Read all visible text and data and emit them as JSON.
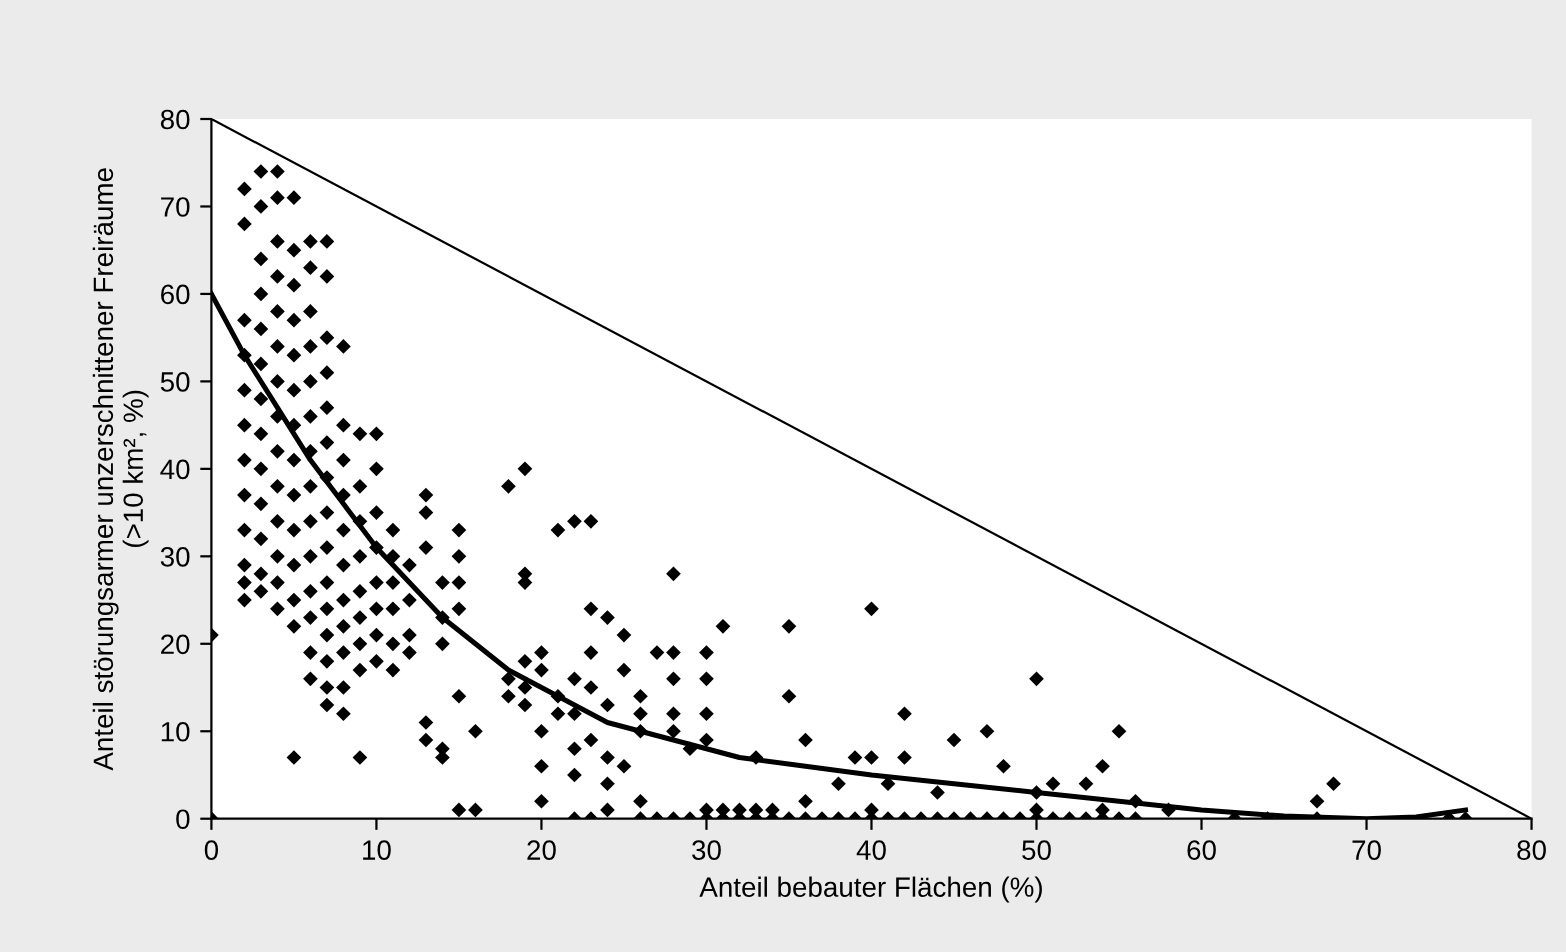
{
  "chart_data": {
    "type": "scatter",
    "xlabel": "Anteil bebauter Flächen (%)",
    "ylabel": "Anteil störungsarmer unzerschnittener Freiräume\n(>10 km², %)",
    "xlim": [
      0,
      80
    ],
    "ylim": [
      0,
      80
    ],
    "xticks": [
      0,
      10,
      20,
      30,
      40,
      50,
      60,
      70,
      80
    ],
    "yticks": [
      0,
      10,
      20,
      30,
      40,
      50,
      60,
      70,
      80
    ],
    "grid": false,
    "legend": false,
    "series": [
      {
        "marker": "diamond",
        "color": "#000000",
        "x": [
          0,
          0,
          2,
          2,
          2,
          2,
          2,
          2,
          2,
          2,
          2,
          2,
          2,
          2,
          3,
          3,
          3,
          3,
          3,
          3,
          3,
          3,
          3,
          3,
          3,
          3,
          3,
          4,
          4,
          4,
          4,
          4,
          4,
          4,
          4,
          4,
          4,
          4,
          4,
          4,
          4,
          5,
          5,
          5,
          5,
          5,
          5,
          5,
          5,
          5,
          5,
          5,
          5,
          5,
          5,
          6,
          6,
          6,
          6,
          6,
          6,
          6,
          6,
          6,
          6,
          6,
          6,
          6,
          6,
          7,
          7,
          7,
          7,
          7,
          7,
          7,
          7,
          7,
          7,
          7,
          7,
          7,
          7,
          7,
          8,
          8,
          8,
          8,
          8,
          8,
          8,
          8,
          8,
          8,
          8,
          9,
          9,
          9,
          9,
          9,
          9,
          9,
          9,
          9,
          10,
          10,
          10,
          10,
          10,
          10,
          10,
          10,
          11,
          11,
          11,
          11,
          11,
          11,
          12,
          12,
          12,
          12,
          13,
          13,
          13,
          13,
          13,
          14,
          14,
          14,
          14,
          14,
          15,
          15,
          15,
          15,
          15,
          15,
          16,
          16,
          18,
          18,
          18,
          19,
          19,
          19,
          19,
          19,
          19,
          20,
          20,
          20,
          20,
          20,
          21,
          21,
          21,
          22,
          22,
          22,
          22,
          22,
          22,
          23,
          23,
          23,
          23,
          23,
          23,
          24,
          24,
          24,
          24,
          24,
          25,
          25,
          25,
          26,
          26,
          26,
          26,
          26,
          27,
          27,
          28,
          28,
          28,
          28,
          28,
          28,
          29,
          29,
          30,
          30,
          30,
          30,
          30,
          30,
          31,
          31,
          31,
          32,
          32,
          33,
          33,
          33,
          34,
          34,
          35,
          35,
          35,
          36,
          36,
          36,
          37,
          38,
          38,
          39,
          39,
          40,
          40,
          40,
          40,
          41,
          41,
          42,
          42,
          42,
          43,
          44,
          44,
          45,
          45,
          46,
          47,
          47,
          48,
          48,
          49,
          50,
          50,
          50,
          50,
          51,
          51,
          52,
          53,
          53,
          54,
          54,
          54,
          55,
          55,
          56,
          56,
          58,
          62,
          64,
          67,
          67,
          68,
          75,
          76
        ],
        "values": [
          21,
          0,
          72,
          68,
          57,
          53,
          49,
          45,
          41,
          37,
          33,
          29,
          27,
          25,
          74,
          70,
          64,
          60,
          56,
          52,
          48,
          44,
          40,
          36,
          32,
          28,
          26,
          74,
          71,
          66,
          62,
          58,
          54,
          50,
          46,
          42,
          38,
          34,
          30,
          27,
          24,
          71,
          65,
          61,
          57,
          53,
          49,
          45,
          41,
          37,
          33,
          29,
          25,
          22,
          7,
          66,
          63,
          58,
          54,
          50,
          46,
          42,
          38,
          34,
          30,
          26,
          23,
          19,
          16,
          66,
          62,
          55,
          51,
          47,
          43,
          39,
          35,
          31,
          27,
          24,
          21,
          18,
          15,
          13,
          54,
          45,
          41,
          37,
          33,
          29,
          25,
          22,
          19,
          15,
          12,
          44,
          38,
          34,
          30,
          26,
          23,
          20,
          17,
          7,
          44,
          40,
          35,
          31,
          27,
          24,
          21,
          18,
          33,
          30,
          27,
          24,
          20,
          17,
          29,
          25,
          21,
          19,
          37,
          35,
          31,
          11,
          9,
          27,
          23,
          20,
          8,
          7,
          33,
          30,
          27,
          24,
          14,
          1,
          10,
          1,
          38,
          16,
          14,
          40,
          28,
          27,
          18,
          15,
          13,
          19,
          17,
          10,
          6,
          2,
          33,
          14,
          12,
          34,
          16,
          12,
          8,
          5,
          0,
          34,
          24,
          19,
          15,
          9,
          0,
          23,
          13,
          7,
          4,
          1,
          21,
          17,
          6,
          14,
          12,
          10,
          2,
          0,
          19,
          0,
          28,
          19,
          16,
          12,
          10,
          0,
          8,
          0,
          19,
          16,
          12,
          9,
          1,
          0,
          22,
          1,
          0,
          1,
          0,
          7,
          1,
          0,
          1,
          0,
          22,
          14,
          0,
          9,
          2,
          0,
          0,
          4,
          0,
          7,
          0,
          24,
          7,
          1,
          0,
          4,
          0,
          12,
          7,
          0,
          0,
          3,
          0,
          9,
          0,
          0,
          10,
          0,
          6,
          0,
          0,
          16,
          3,
          1,
          0,
          4,
          0,
          0,
          4,
          0,
          6,
          1,
          0,
          10,
          0,
          2,
          0,
          1,
          0,
          0,
          0,
          2,
          4,
          0,
          0
        ]
      },
      {
        "type": "line",
        "marker": "none",
        "color": "#000000",
        "x": [
          0,
          2,
          4,
          6,
          8,
          10,
          12,
          14,
          16,
          18,
          20,
          24,
          28,
          32,
          36,
          40,
          45,
          50,
          55,
          60,
          65,
          70,
          73,
          76
        ],
        "values": [
          60,
          53,
          47,
          41,
          36,
          31,
          27,
          23,
          20,
          17,
          15,
          11,
          9,
          7,
          6,
          5,
          4,
          3,
          2,
          1,
          0.3,
          0,
          0.2,
          1
        ]
      },
      {
        "type": "line",
        "marker": "none",
        "color": "#000000",
        "x": [
          0,
          80
        ],
        "values": [
          80,
          0
        ]
      }
    ]
  }
}
